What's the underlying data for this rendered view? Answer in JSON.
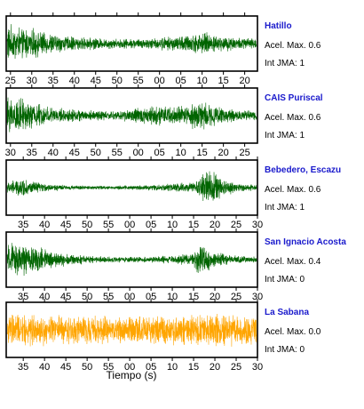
{
  "chart_data": {
    "type": "line",
    "xlabel": "Tiempo (s)",
    "acel_label": "Acel. Max.",
    "int_label": "Int JMA:",
    "panels": [
      {
        "station": "Hatillo",
        "acel_max": "0.6",
        "int_jma": "1",
        "color": "#006400",
        "tick_labels": [
          "25",
          "30",
          "35",
          "40",
          "45",
          "50",
          "55",
          "00",
          "05",
          "10",
          "15",
          "20"
        ],
        "x_first_tick": 25,
        "x_range_ticks": [
          -0.2,
          11.6
        ],
        "envelope": [
          [
            0,
            0.9
          ],
          [
            1,
            0.75
          ],
          [
            2,
            0.5
          ],
          [
            3,
            0.35
          ],
          [
            4,
            0.3
          ],
          [
            5,
            0.25
          ],
          [
            6,
            0.25
          ],
          [
            7,
            0.3
          ],
          [
            8,
            0.4
          ],
          [
            9,
            0.55
          ],
          [
            10,
            0.4
          ],
          [
            11,
            0.3
          ],
          [
            11.6,
            0.3
          ]
        ]
      },
      {
        "station": "CAIS Puriscal",
        "acel_max": "0.6",
        "int_jma": "1",
        "color": "#006400",
        "tick_labels": [
          "30",
          "35",
          "40",
          "45",
          "50",
          "55",
          "00",
          "05",
          "10",
          "15",
          "20",
          "25"
        ],
        "x_first_tick": 30,
        "x_range_ticks": [
          -0.2,
          11.6
        ],
        "envelope": [
          [
            0,
            0.95
          ],
          [
            1,
            0.7
          ],
          [
            2,
            0.4
          ],
          [
            3,
            0.3
          ],
          [
            4,
            0.25
          ],
          [
            5,
            0.25
          ],
          [
            6,
            0.4
          ],
          [
            7,
            0.5
          ],
          [
            8,
            0.45
          ],
          [
            9,
            0.8
          ],
          [
            10,
            0.35
          ],
          [
            11,
            0.25
          ],
          [
            11.6,
            0.25
          ]
        ]
      },
      {
        "station": "Bebedero, Escazu",
        "acel_max": "0.6",
        "int_jma": "1",
        "color": "#006400",
        "tick_labels": [
          "35",
          "40",
          "45",
          "50",
          "55",
          "00",
          "05",
          "10",
          "15",
          "20",
          "25",
          "30"
        ],
        "x_first_tick": 35,
        "x_range_ticks": [
          -0.8,
          11.0
        ],
        "envelope": [
          [
            -0.8,
            0.3
          ],
          [
            0,
            0.45
          ],
          [
            1,
            0.2
          ],
          [
            2,
            0.12
          ],
          [
            3,
            0.1
          ],
          [
            4,
            0.1
          ],
          [
            5,
            0.1
          ],
          [
            6,
            0.15
          ],
          [
            7,
            0.2
          ],
          [
            8,
            0.25
          ],
          [
            8.7,
            0.95
          ],
          [
            9.2,
            0.6
          ],
          [
            10,
            0.2
          ],
          [
            11,
            0.15
          ]
        ]
      },
      {
        "station": "San Ignacio Acosta",
        "acel_max": "0.4",
        "int_jma": "0",
        "color": "#006400",
        "tick_labels": [
          "35",
          "40",
          "45",
          "50",
          "55",
          "00",
          "05",
          "10",
          "15",
          "20",
          "25",
          "30"
        ],
        "x_first_tick": 35,
        "x_range_ticks": [
          -0.8,
          11.0
        ],
        "envelope": [
          [
            -0.8,
            0.7
          ],
          [
            0,
            0.85
          ],
          [
            1,
            0.55
          ],
          [
            2,
            0.3
          ],
          [
            3,
            0.2
          ],
          [
            4,
            0.15
          ],
          [
            5,
            0.15
          ],
          [
            6,
            0.15
          ],
          [
            7,
            0.2
          ],
          [
            7.9,
            0.3
          ],
          [
            8.3,
            0.95
          ],
          [
            8.8,
            0.4
          ],
          [
            10,
            0.2
          ],
          [
            11,
            0.15
          ]
        ]
      },
      {
        "station": "La Sabana",
        "acel_max": "0.0",
        "int_jma": "0",
        "color": "#ffa500",
        "tick_labels": [
          "35",
          "40",
          "45",
          "50",
          "55",
          "00",
          "05",
          "10",
          "15",
          "20",
          "25",
          "30"
        ],
        "x_first_tick": 35,
        "x_range_ticks": [
          -0.8,
          11.0
        ],
        "envelope": [
          [
            -0.8,
            0.8
          ],
          [
            0,
            0.8
          ],
          [
            2,
            0.75
          ],
          [
            4,
            0.7
          ],
          [
            6,
            0.75
          ],
          [
            8,
            0.8
          ],
          [
            9,
            0.9
          ],
          [
            10,
            0.8
          ],
          [
            11,
            0.8
          ]
        ]
      }
    ]
  }
}
